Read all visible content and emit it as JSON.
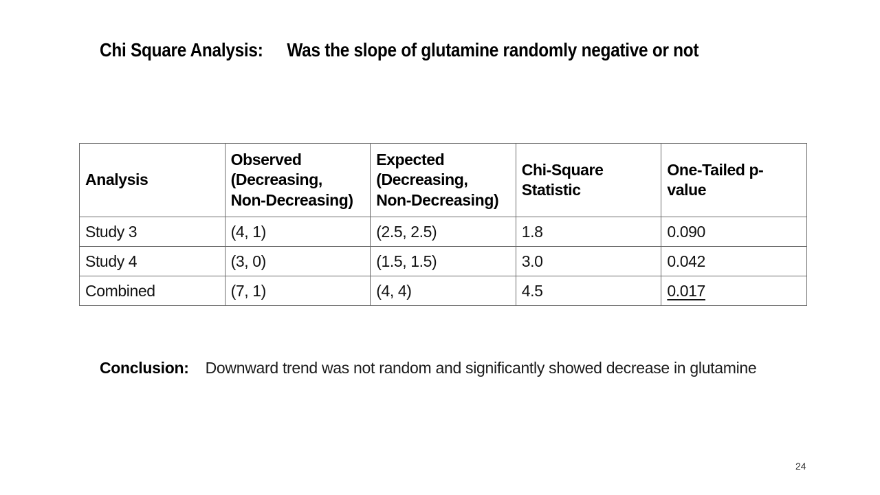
{
  "slide": {
    "title": {
      "prefix": "Chi Square Analysis:",
      "text": "Was the slope of glutamine randomly negative or not"
    },
    "table": {
      "headers": [
        "Analysis",
        "Observed\n(Decreasing,\nNon-Decreasing)",
        "Expected\n(Decreasing,\nNon-Decreasing)",
        "Chi-Square\nStatistic",
        "One-Tailed p-\nvalue"
      ],
      "rows": [
        [
          "Study 3",
          "(4, 1)",
          "(2.5, 2.5)",
          "1.8",
          "0.090"
        ],
        [
          "Study 4",
          "(3, 0)",
          "(1.5, 1.5)",
          "3.0",
          "0.042"
        ],
        [
          "Combined",
          "(7, 1)",
          "(4, 4)",
          "4.5",
          "0.017"
        ]
      ]
    },
    "conclusion": {
      "prefix": "Conclusion:",
      "text": "Downward trend was not random and significantly showed decrease in glutamine"
    },
    "page_number": "24"
  }
}
